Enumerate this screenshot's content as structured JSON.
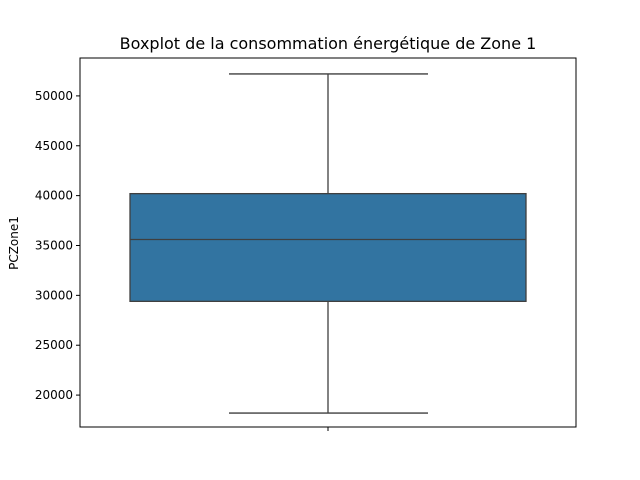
{
  "chart_data": {
    "type": "box",
    "title": "Boxplot de la consommation énergétique de Zone 1",
    "xlabel": "",
    "ylabel": "PCZone1",
    "ylim": [
      16800,
      53800
    ],
    "yticks": [
      20000,
      25000,
      30000,
      35000,
      40000,
      45000,
      50000
    ],
    "ytick_labels": [
      "20000",
      "25000",
      "30000",
      "35000",
      "40000",
      "45000",
      "50000"
    ],
    "grid": false,
    "box": {
      "whisker_low": 18200,
      "q1": 29400,
      "median": 35600,
      "q3": 40200,
      "whisker_high": 52200
    },
    "colors": {
      "box_fill": "#3274a1",
      "box_edge": "#3f3f3f",
      "median": "#3f3f3f",
      "whisker": "#3f3f3f",
      "axes": "#000000"
    }
  }
}
